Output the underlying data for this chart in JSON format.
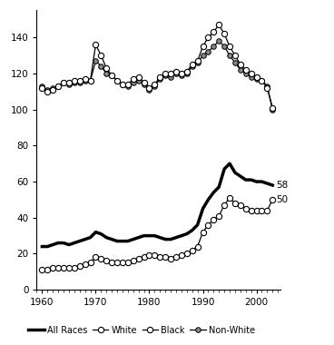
{
  "years": [
    1960,
    1961,
    1962,
    1963,
    1964,
    1965,
    1966,
    1967,
    1968,
    1969,
    1970,
    1971,
    1972,
    1973,
    1974,
    1975,
    1976,
    1977,
    1978,
    1979,
    1980,
    1981,
    1982,
    1983,
    1984,
    1985,
    1986,
    1987,
    1988,
    1989,
    1990,
    1991,
    1992,
    1993,
    1994,
    1995,
    1996,
    1997,
    1998,
    1999,
    2000,
    2001,
    2002,
    2003
  ],
  "all_races": [
    24,
    24,
    25,
    26,
    26,
    25,
    26,
    27,
    28,
    29,
    32,
    31,
    29,
    28,
    27,
    27,
    27,
    28,
    29,
    30,
    30,
    30,
    29,
    28,
    28,
    29,
    30,
    31,
    33,
    36,
    45,
    50,
    54,
    57,
    67,
    70,
    65,
    63,
    61,
    61,
    60,
    60,
    59,
    58
  ],
  "white": [
    11,
    11,
    12,
    12,
    12,
    12,
    12,
    13,
    14,
    15,
    18,
    17,
    16,
    15,
    15,
    15,
    15,
    16,
    17,
    18,
    19,
    19,
    18,
    18,
    17,
    18,
    19,
    20,
    22,
    24,
    32,
    36,
    39,
    41,
    47,
    51,
    48,
    47,
    45,
    44,
    44,
    44,
    44,
    50
  ],
  "black": [
    112,
    110,
    111,
    113,
    115,
    115,
    116,
    116,
    117,
    116,
    136,
    130,
    123,
    119,
    116,
    114,
    114,
    117,
    118,
    115,
    112,
    114,
    118,
    120,
    120,
    121,
    120,
    121,
    125,
    127,
    135,
    140,
    143,
    147,
    142,
    135,
    130,
    125,
    122,
    120,
    118,
    116,
    112,
    101
  ],
  "non_white": [
    113,
    111,
    112,
    113,
    115,
    114,
    115,
    115,
    116,
    116,
    127,
    124,
    120,
    119,
    116,
    114,
    113,
    115,
    116,
    114,
    111,
    113,
    117,
    119,
    118,
    120,
    119,
    120,
    124,
    126,
    130,
    132,
    135,
    138,
    135,
    130,
    126,
    122,
    120,
    118,
    117,
    116,
    113,
    100
  ],
  "xlim": [
    1959,
    2004.5
  ],
  "ylim": [
    0,
    155
  ],
  "yticks": [
    0,
    20,
    40,
    60,
    80,
    100,
    120,
    140
  ],
  "xticks": [
    1960,
    1970,
    1980,
    1990,
    2000
  ],
  "bg_color": "#ffffff"
}
